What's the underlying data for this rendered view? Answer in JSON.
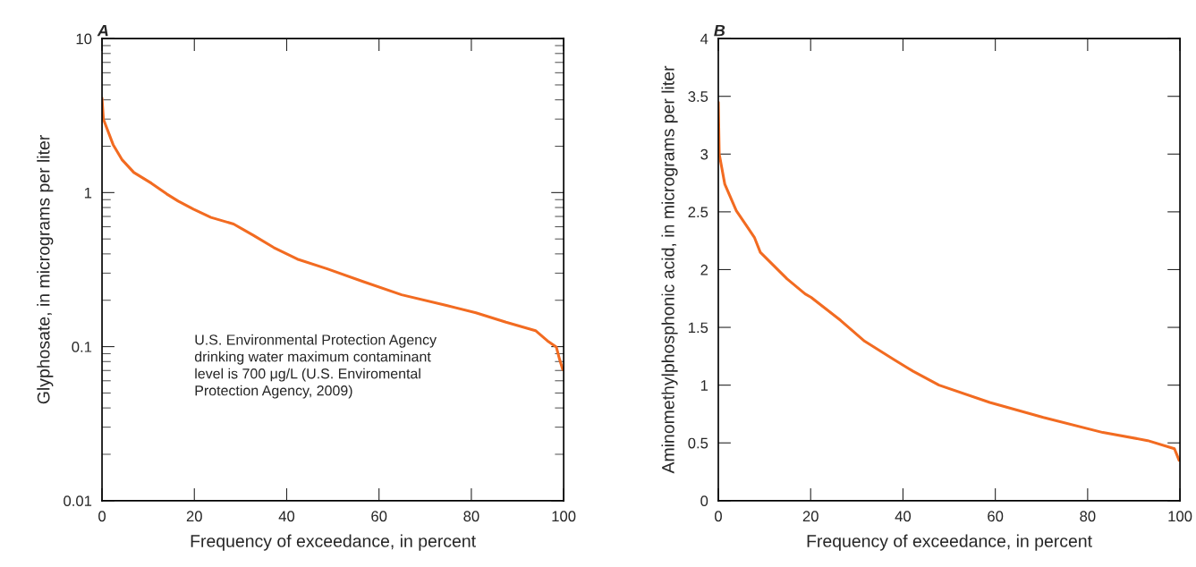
{
  "chart_data": [
    {
      "type": "line",
      "title": "A",
      "xlabel": "Frequency of exceedance, in percent",
      "ylabel": "Glyphosate, in micrograms per liter",
      "log": "y",
      "xlim": [
        0,
        100
      ],
      "xticks": [
        0,
        20,
        40,
        60,
        80,
        100
      ],
      "ylim": [
        0.01,
        10
      ],
      "yticks": [
        0.01,
        0.1,
        1,
        10
      ],
      "grid": false,
      "annotations": [
        "U.S. Environmental Protection Agency\ndrinking water maximum contaminant\nlevel is 700 μg/L (U.S. Enviromental\nProtection Agency, 2009)"
      ],
      "series": [
        {
          "color": "#f26b21",
          "x": [
            0,
            0.3,
            2.4,
            4.3,
            6.9,
            10.7,
            14,
            16.5,
            19.8,
            23.6,
            28.5,
            32.7,
            37.2,
            42.3,
            48.8,
            56.5,
            64.9,
            74.6,
            81,
            87.5,
            93.9,
            96.5,
            98.4,
            99.1,
            99.8
          ],
          "values": [
            4.1,
            3.0,
            2.05,
            1.64,
            1.35,
            1.15,
            0.98,
            0.88,
            0.78,
            0.69,
            0.625,
            0.53,
            0.44,
            0.37,
            0.32,
            0.265,
            0.217,
            0.185,
            0.166,
            0.144,
            0.127,
            0.109,
            0.0995,
            0.083,
            0.071
          ]
        }
      ]
    },
    {
      "type": "line",
      "title": "B",
      "xlabel": "Frequency of exceedance, in percent",
      "ylabel": "Aminomethylphosphonic acid, in micrograms per liter",
      "xlim": [
        0,
        100
      ],
      "xticks": [
        0,
        20,
        40,
        60,
        80,
        100
      ],
      "ylim": [
        0,
        4
      ],
      "yticks": [
        0,
        0.5,
        1,
        1.5,
        2,
        2.5,
        3,
        3.5,
        4
      ],
      "grid": false,
      "series": [
        {
          "color": "#f26b21",
          "x": [
            0,
            0.2,
            1.4,
            3.9,
            7.8,
            9.1,
            14.9,
            18.8,
            20.1,
            26.5,
            31.7,
            38.1,
            42.2,
            47.8,
            58.8,
            70.4,
            83.3,
            93,
            98.8,
            99.8
          ],
          "values": [
            3.45,
            3.0,
            2.74,
            2.51,
            2.28,
            2.15,
            1.92,
            1.79,
            1.76,
            1.56,
            1.38,
            1.22,
            1.12,
            1.0,
            0.85,
            0.72,
            0.59,
            0.52,
            0.45,
            0.35
          ]
        }
      ]
    }
  ]
}
